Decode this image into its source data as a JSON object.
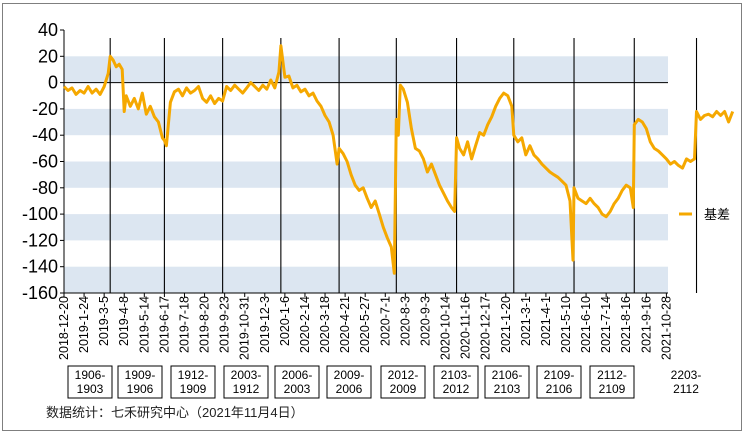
{
  "chart_data": {
    "type": "line",
    "title": "",
    "xlabel": "",
    "ylabel": "",
    "ylim": [
      -160,
      40
    ],
    "yticks": [
      40,
      20,
      0,
      -20,
      -40,
      -60,
      -80,
      -100,
      -120,
      -140,
      -160
    ],
    "grid": "alternating horizontal bands",
    "legend_position": "right",
    "x_tick_labels": [
      "2018-12-20",
      "2019-1-24",
      "2019-3-5",
      "2019-4-8",
      "2019-5-14",
      "2019-6-17",
      "2019-7-18",
      "2019-8-20",
      "2019-9-23",
      "2019-10-31",
      "2019-12-3",
      "2020-1-6",
      "2020-2-14",
      "2020-3-18",
      "2020-4-21",
      "2020-5-27",
      "2020-7-1",
      "2020-8-3",
      "2020-9-3",
      "2020-10-14",
      "2020-11-16",
      "2020-12-17",
      "2021-1-20",
      "2021-3-1",
      "2021-4-1",
      "2021-5-10",
      "2021-6-10",
      "2021-7-14",
      "2021-8-16",
      "2021-9-16",
      "2021-10-28"
    ],
    "contract_labels": [
      [
        "1906-",
        "1903"
      ],
      [
        "1909-",
        "1906"
      ],
      [
        "1912-",
        "1909"
      ],
      [
        "2003-",
        "1912"
      ],
      [
        "2006-",
        "2003"
      ],
      [
        "2009-",
        "2006"
      ],
      [
        "2012-",
        "2009"
      ],
      [
        "2103-",
        "2012"
      ],
      [
        "2106-",
        "2103"
      ],
      [
        "2109-",
        "2106"
      ],
      [
        "2112-",
        "2109"
      ],
      [
        "2203-",
        "2112"
      ]
    ],
    "contract_rolls": [
      2.3,
      5.0,
      7.9,
      10.8,
      13.7,
      16.55,
      19.55,
      22.4,
      25.4,
      28.4,
      31.5
    ],
    "series": [
      {
        "name": "基差",
        "color": "#F5A800",
        "points": [
          [
            0.0,
            -3
          ],
          [
            0.2,
            -6
          ],
          [
            0.4,
            -4
          ],
          [
            0.6,
            -9
          ],
          [
            0.8,
            -6
          ],
          [
            1.0,
            -8
          ],
          [
            1.2,
            -3
          ],
          [
            1.4,
            -8
          ],
          [
            1.6,
            -5
          ],
          [
            1.8,
            -9
          ],
          [
            2.0,
            -3
          ],
          [
            2.2,
            7
          ],
          [
            2.3,
            20
          ],
          [
            2.45,
            17
          ],
          [
            2.6,
            12
          ],
          [
            2.75,
            14
          ],
          [
            2.9,
            10
          ],
          [
            3.0,
            -22
          ],
          [
            3.1,
            -10
          ],
          [
            3.3,
            -18
          ],
          [
            3.5,
            -12
          ],
          [
            3.7,
            -20
          ],
          [
            3.9,
            -8
          ],
          [
            4.1,
            -24
          ],
          [
            4.3,
            -18
          ],
          [
            4.5,
            -26
          ],
          [
            4.7,
            -30
          ],
          [
            4.9,
            -42
          ],
          [
            5.0,
            -44
          ],
          [
            5.1,
            -48
          ],
          [
            5.3,
            -15
          ],
          [
            5.5,
            -7
          ],
          [
            5.7,
            -5
          ],
          [
            5.9,
            -10
          ],
          [
            6.1,
            -4
          ],
          [
            6.3,
            -8
          ],
          [
            6.5,
            -6
          ],
          [
            6.7,
            -3
          ],
          [
            6.9,
            -12
          ],
          [
            7.1,
            -15
          ],
          [
            7.3,
            -10
          ],
          [
            7.5,
            -16
          ],
          [
            7.7,
            -12
          ],
          [
            7.9,
            -14
          ],
          [
            8.1,
            -3
          ],
          [
            8.3,
            -6
          ],
          [
            8.5,
            -2
          ],
          [
            8.7,
            -5
          ],
          [
            8.9,
            -8
          ],
          [
            9.1,
            -4
          ],
          [
            9.3,
            0
          ],
          [
            9.5,
            -3
          ],
          [
            9.7,
            -6
          ],
          [
            9.9,
            -2
          ],
          [
            10.1,
            -5
          ],
          [
            10.3,
            2
          ],
          [
            10.5,
            -4
          ],
          [
            10.7,
            8
          ],
          [
            10.8,
            28
          ],
          [
            11.0,
            4
          ],
          [
            11.2,
            5
          ],
          [
            11.4,
            -4
          ],
          [
            11.6,
            -2
          ],
          [
            11.8,
            -7
          ],
          [
            12.0,
            -5
          ],
          [
            12.2,
            -10
          ],
          [
            12.4,
            -8
          ],
          [
            12.6,
            -14
          ],
          [
            12.8,
            -18
          ],
          [
            13.0,
            -25
          ],
          [
            13.2,
            -30
          ],
          [
            13.4,
            -40
          ],
          [
            13.6,
            -62
          ],
          [
            13.7,
            -50
          ],
          [
            13.9,
            -54
          ],
          [
            14.1,
            -60
          ],
          [
            14.3,
            -70
          ],
          [
            14.5,
            -78
          ],
          [
            14.7,
            -82
          ],
          [
            14.9,
            -80
          ],
          [
            15.1,
            -88
          ],
          [
            15.3,
            -95
          ],
          [
            15.5,
            -90
          ],
          [
            15.7,
            -100
          ],
          [
            15.9,
            -110
          ],
          [
            16.1,
            -118
          ],
          [
            16.3,
            -125
          ],
          [
            16.45,
            -145
          ],
          [
            16.55,
            -28
          ],
          [
            16.65,
            -40
          ],
          [
            16.75,
            -2
          ],
          [
            16.9,
            -5
          ],
          [
            17.1,
            -15
          ],
          [
            17.3,
            -35
          ],
          [
            17.5,
            -50
          ],
          [
            17.7,
            -52
          ],
          [
            17.9,
            -58
          ],
          [
            18.1,
            -68
          ],
          [
            18.3,
            -62
          ],
          [
            18.5,
            -70
          ],
          [
            18.7,
            -78
          ],
          [
            18.9,
            -84
          ],
          [
            19.1,
            -90
          ],
          [
            19.3,
            -95
          ],
          [
            19.45,
            -98
          ],
          [
            19.55,
            -42
          ],
          [
            19.7,
            -50
          ],
          [
            19.9,
            -55
          ],
          [
            20.1,
            -45
          ],
          [
            20.3,
            -58
          ],
          [
            20.5,
            -48
          ],
          [
            20.7,
            -38
          ],
          [
            20.9,
            -40
          ],
          [
            21.1,
            -32
          ],
          [
            21.3,
            -26
          ],
          [
            21.5,
            -18
          ],
          [
            21.7,
            -12
          ],
          [
            21.9,
            -8
          ],
          [
            22.1,
            -10
          ],
          [
            22.3,
            -18
          ],
          [
            22.4,
            -40
          ],
          [
            22.6,
            -45
          ],
          [
            22.8,
            -42
          ],
          [
            23.0,
            -55
          ],
          [
            23.2,
            -48
          ],
          [
            23.4,
            -55
          ],
          [
            23.6,
            -58
          ],
          [
            23.8,
            -62
          ],
          [
            24.0,
            -65
          ],
          [
            24.2,
            -68
          ],
          [
            24.4,
            -70
          ],
          [
            24.6,
            -72
          ],
          [
            24.8,
            -75
          ],
          [
            25.0,
            -78
          ],
          [
            25.2,
            -90
          ],
          [
            25.35,
            -135
          ],
          [
            25.4,
            -80
          ],
          [
            25.6,
            -88
          ],
          [
            25.8,
            -90
          ],
          [
            26.0,
            -92
          ],
          [
            26.2,
            -88
          ],
          [
            26.4,
            -92
          ],
          [
            26.6,
            -95
          ],
          [
            26.8,
            -100
          ],
          [
            27.0,
            -102
          ],
          [
            27.2,
            -98
          ],
          [
            27.4,
            -92
          ],
          [
            27.6,
            -88
          ],
          [
            27.8,
            -82
          ],
          [
            28.0,
            -78
          ],
          [
            28.2,
            -80
          ],
          [
            28.35,
            -95
          ],
          [
            28.4,
            -32
          ],
          [
            28.6,
            -28
          ],
          [
            28.8,
            -30
          ],
          [
            29.0,
            -35
          ],
          [
            29.2,
            -45
          ],
          [
            29.4,
            -50
          ],
          [
            29.6,
            -52
          ],
          [
            29.8,
            -55
          ],
          [
            30.0,
            -58
          ],
          [
            30.2,
            -62
          ],
          [
            30.4,
            -60
          ],
          [
            30.6,
            -63
          ],
          [
            30.8,
            -65
          ],
          [
            31.0,
            -58
          ],
          [
            31.2,
            -60
          ],
          [
            31.4,
            -58
          ],
          [
            31.5,
            -22
          ],
          [
            31.7,
            -28
          ],
          [
            31.9,
            -25
          ],
          [
            32.1,
            -24
          ],
          [
            32.3,
            -26
          ],
          [
            32.5,
            -22
          ],
          [
            32.7,
            -25
          ],
          [
            32.9,
            -22
          ],
          [
            33.1,
            -30
          ],
          [
            33.3,
            -22
          ]
        ]
      }
    ]
  },
  "footer": {
    "source": "数据统计：七禾研究中心（2021年11月4日）"
  }
}
